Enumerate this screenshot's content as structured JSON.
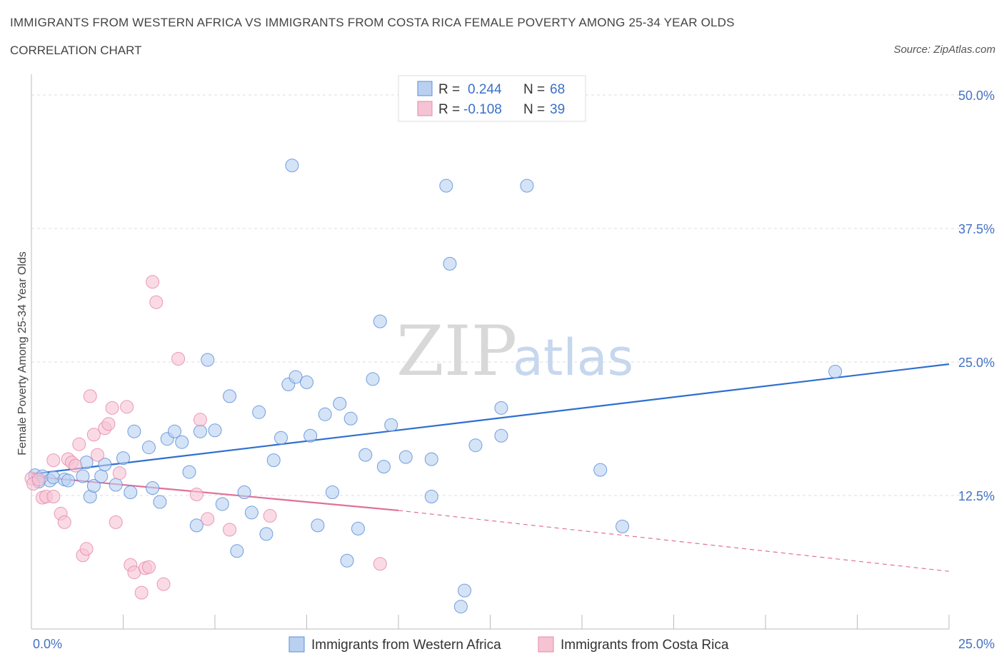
{
  "title": "IMMIGRANTS FROM WESTERN AFRICA VS IMMIGRANTS FROM COSTA RICA FEMALE POVERTY AMONG 25-34 YEAR OLDS",
  "subtitle": "CORRELATION CHART",
  "source": "Source: ZipAtlas.com",
  "watermark": {
    "zip": "ZIP",
    "atlas": "atlas"
  },
  "colors": {
    "blue": "#5b8fd9",
    "blue_fill": "#b9d0f1",
    "blue_line": "#2e6fcf",
    "pink": "#e58aa9",
    "pink_fill": "#f6c3d3",
    "pink_line": "#e0709a",
    "axis_label": "#4472c4",
    "grid": "#dddddd"
  },
  "legend_top": {
    "rows": [
      {
        "r_label": "R = ",
        "r_value": "0.244",
        "n_label": "N = ",
        "n_value": "68",
        "color": "blue"
      },
      {
        "r_label": "R = ",
        "r_value": "-0.108",
        "n_label": "N = ",
        "n_value": "39",
        "color": "pink"
      }
    ]
  },
  "chart_data": {
    "type": "scatter",
    "title": "IMMIGRANTS FROM WESTERN AFRICA VS IMMIGRANTS FROM COSTA RICA FEMALE POVERTY AMONG 25-34 YEAR OLDS",
    "subtitle": "CORRELATION CHART",
    "xlabel": "",
    "ylabel": "Female Poverty Among 25-34 Year Olds",
    "xlim": [
      0,
      25
    ],
    "ylim": [
      0,
      50
    ],
    "x_tick_labels": [
      {
        "value": 0,
        "label": "0.0%"
      },
      {
        "value": 25,
        "label": "25.0%"
      }
    ],
    "y_tick_labels": [
      {
        "value": 12.5,
        "label": "12.5%"
      },
      {
        "value": 25,
        "label": "25.0%"
      },
      {
        "value": 37.5,
        "label": "37.5%"
      },
      {
        "value": 50,
        "label": "50.0%"
      }
    ],
    "grid": true,
    "legend_position": "top-center",
    "series": [
      {
        "name": "Immigrants from Western Africa",
        "color": "blue",
        "trend": {
          "x": [
            0,
            25
          ],
          "y": [
            14.5,
            24.8
          ],
          "dashed_from": null
        },
        "points": [
          [
            0.1,
            14.4
          ],
          [
            0.3,
            14.3
          ],
          [
            0.5,
            13.9
          ],
          [
            0.6,
            14.2
          ],
          [
            0.9,
            14.0
          ],
          [
            1.0,
            13.9
          ],
          [
            1.4,
            14.3
          ],
          [
            1.5,
            15.6
          ],
          [
            1.6,
            12.4
          ],
          [
            1.7,
            13.4
          ],
          [
            1.9,
            14.3
          ],
          [
            2.0,
            15.4
          ],
          [
            2.3,
            13.5
          ],
          [
            2.5,
            16.0
          ],
          [
            2.8,
            18.5
          ],
          [
            2.7,
            12.8
          ],
          [
            3.2,
            17.0
          ],
          [
            3.3,
            13.2
          ],
          [
            3.5,
            11.9
          ],
          [
            3.7,
            17.8
          ],
          [
            3.9,
            18.5
          ],
          [
            4.1,
            17.5
          ],
          [
            4.3,
            14.7
          ],
          [
            4.5,
            9.7
          ],
          [
            4.6,
            18.5
          ],
          [
            4.8,
            25.2
          ],
          [
            5.0,
            18.6
          ],
          [
            5.2,
            11.7
          ],
          [
            5.4,
            21.8
          ],
          [
            5.6,
            7.3
          ],
          [
            5.8,
            12.8
          ],
          [
            6.0,
            10.9
          ],
          [
            6.2,
            20.3
          ],
          [
            6.4,
            8.9
          ],
          [
            6.6,
            15.8
          ],
          [
            6.8,
            17.9
          ],
          [
            7.0,
            22.9
          ],
          [
            7.2,
            23.6
          ],
          [
            7.5,
            23.1
          ],
          [
            7.6,
            18.1
          ],
          [
            7.8,
            9.7
          ],
          [
            8.0,
            20.1
          ],
          [
            8.2,
            12.8
          ],
          [
            8.4,
            21.1
          ],
          [
            8.6,
            6.4
          ],
          [
            8.7,
            19.7
          ],
          [
            8.9,
            9.4
          ],
          [
            9.1,
            16.3
          ],
          [
            9.3,
            23.4
          ],
          [
            9.5,
            28.8
          ],
          [
            9.6,
            15.2
          ],
          [
            9.8,
            19.1
          ],
          [
            10.2,
            16.1
          ],
          [
            10.9,
            12.4
          ],
          [
            10.9,
            15.9
          ],
          [
            11.3,
            41.5
          ],
          [
            11.4,
            34.2
          ],
          [
            11.7,
            2.1
          ],
          [
            11.8,
            3.6
          ],
          [
            12.1,
            17.2
          ],
          [
            12.8,
            18.1
          ],
          [
            12.8,
            20.7
          ],
          [
            13.5,
            41.5
          ],
          [
            7.1,
            43.4
          ],
          [
            15.5,
            14.9
          ],
          [
            16.1,
            9.6
          ],
          [
            21.9,
            24.1
          ],
          [
            0.2,
            13.8
          ]
        ]
      },
      {
        "name": "Immigrants from Costa Rica",
        "color": "pink",
        "trend": {
          "x": [
            0,
            10
          ],
          "y": [
            14.3,
            11.1
          ],
          "dashed_to_x": 25,
          "dashed_to_y": 5.4
        },
        "points": [
          [
            0.0,
            14.1
          ],
          [
            0.05,
            13.6
          ],
          [
            0.2,
            14.0
          ],
          [
            0.3,
            12.3
          ],
          [
            0.4,
            12.4
          ],
          [
            0.6,
            12.4
          ],
          [
            0.6,
            15.8
          ],
          [
            0.8,
            10.8
          ],
          [
            0.9,
            10.0
          ],
          [
            1.0,
            15.9
          ],
          [
            1.1,
            15.6
          ],
          [
            1.2,
            15.3
          ],
          [
            1.3,
            17.3
          ],
          [
            1.4,
            6.9
          ],
          [
            1.5,
            7.5
          ],
          [
            1.6,
            21.8
          ],
          [
            1.7,
            18.2
          ],
          [
            1.8,
            16.3
          ],
          [
            2.0,
            18.8
          ],
          [
            2.1,
            19.2
          ],
          [
            2.2,
            20.7
          ],
          [
            2.3,
            10.0
          ],
          [
            2.4,
            14.6
          ],
          [
            2.6,
            20.8
          ],
          [
            2.7,
            6.0
          ],
          [
            2.8,
            5.3
          ],
          [
            3.0,
            3.4
          ],
          [
            3.1,
            5.7
          ],
          [
            3.2,
            5.8
          ],
          [
            3.3,
            32.5
          ],
          [
            3.4,
            30.6
          ],
          [
            3.6,
            4.2
          ],
          [
            4.0,
            25.3
          ],
          [
            4.5,
            12.6
          ],
          [
            4.6,
            19.6
          ],
          [
            4.8,
            10.3
          ],
          [
            5.4,
            9.3
          ],
          [
            6.5,
            10.6
          ],
          [
            9.5,
            6.1
          ]
        ]
      }
    ]
  },
  "legend_bottom": [
    {
      "label": "Immigrants from Western Africa",
      "color": "blue"
    },
    {
      "label": "Immigrants from Costa Rica",
      "color": "pink"
    }
  ]
}
